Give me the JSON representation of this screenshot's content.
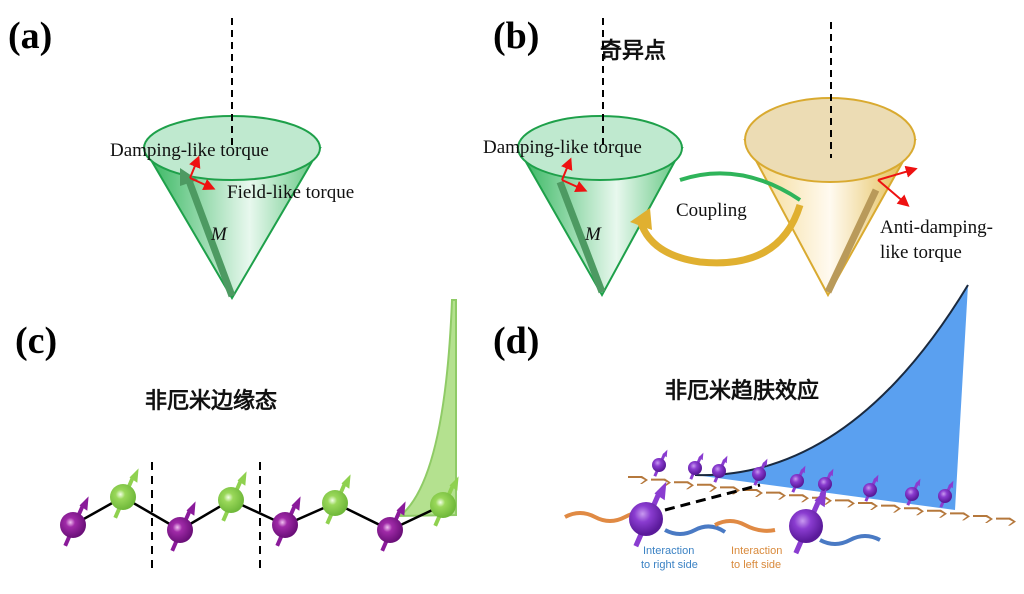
{
  "panels": {
    "a": {
      "label": "(a)",
      "damping": "Damping-like torque",
      "field": "Field-like torque",
      "vector": "M"
    },
    "b": {
      "label": "(b)",
      "title": "奇异点",
      "damping": "Damping-like torque",
      "coupling": "Coupling",
      "anti1": "Anti-damping-",
      "anti2": "like torque",
      "vector": "M"
    },
    "c": {
      "label": "(c)",
      "title": "非厄米边缘态"
    },
    "d": {
      "label": "(d)",
      "title": "非厄米趋肤效应",
      "right1": "Interaction",
      "right2": "to right side",
      "left1": "Interaction",
      "left2": "to left side"
    }
  },
  "colors": {
    "green_cone": "#2fb45a",
    "gold_cone": "#e0b640",
    "purple": "#8a1a9a",
    "green_ball": "#8fd14f",
    "blue_skin": "#5aa0f0",
    "torque_arrow": "#ee1111",
    "chevron": "#b5783c",
    "right_text": "#3b82c4",
    "left_text": "#d98a3c"
  }
}
